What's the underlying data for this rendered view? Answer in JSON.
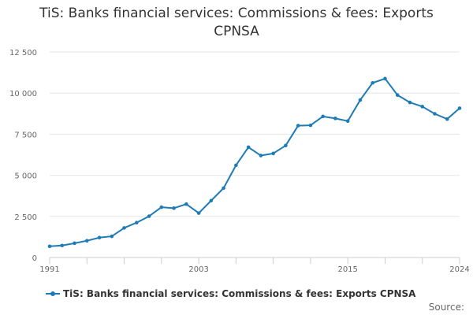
{
  "title": "TiS: Banks financial services: Commissions & fees: Exports CPNSA",
  "legend_label": "TiS: Banks financial services: Commissions & fees: Exports CPNSA",
  "source_label": "Source:",
  "colors": {
    "series": "#1f7bb6",
    "grid": "#e6e6e6",
    "axis": "#cccccc"
  },
  "chart_data": {
    "type": "line",
    "title": "TiS: Banks financial services: Commissions & fees: Exports CPNSA",
    "xlabel": "",
    "ylabel": "",
    "x_tick_labels": [
      "1991",
      "2003",
      "2015",
      "2024"
    ],
    "y_tick_labels": [
      "0",
      "2 500",
      "5 000",
      "7 500",
      "10 000",
      "12 500"
    ],
    "y_ticks": [
      0,
      2500,
      5000,
      7500,
      10000,
      12500
    ],
    "ylim": [
      0,
      12500
    ],
    "xlim": [
      1991,
      2024
    ],
    "grid": true,
    "legend_position": "bottom-left",
    "series": [
      {
        "name": "TiS: Banks financial services: Commissions & fees: Exports CPNSA",
        "x": [
          1991,
          1992,
          1993,
          1994,
          1995,
          1996,
          1997,
          1998,
          1999,
          2000,
          2001,
          2002,
          2003,
          2004,
          2005,
          2006,
          2007,
          2008,
          2009,
          2010,
          2011,
          2012,
          2013,
          2014,
          2015,
          2016,
          2017,
          2018,
          2019,
          2020,
          2021,
          2022,
          2023,
          2024
        ],
        "values": [
          680,
          730,
          870,
          1020,
          1210,
          1290,
          1800,
          2120,
          2510,
          3060,
          3000,
          3250,
          2700,
          3460,
          4220,
          5610,
          6710,
          6200,
          6330,
          6810,
          8020,
          8040,
          8580,
          8460,
          8300,
          9580,
          10620,
          10880,
          9880,
          9430,
          9180,
          8740,
          8420,
          9080
        ]
      }
    ]
  }
}
